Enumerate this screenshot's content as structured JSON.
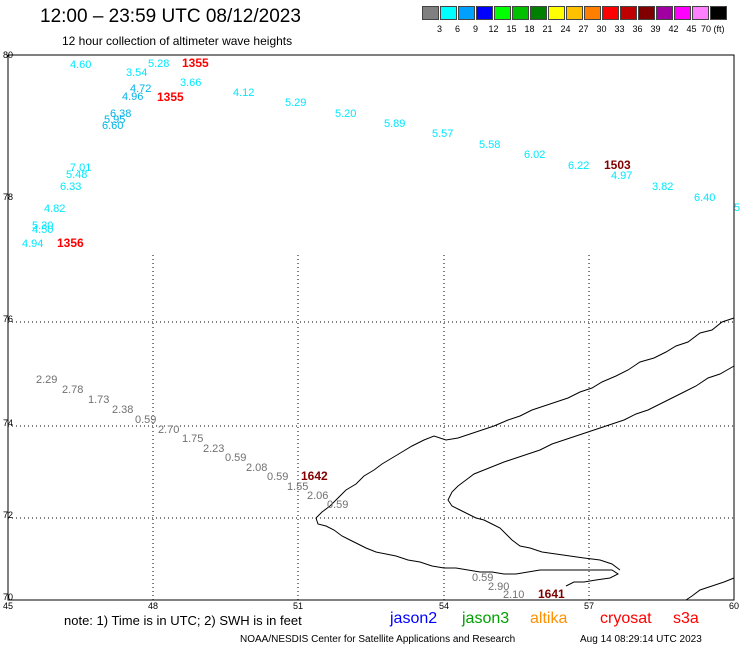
{
  "header": {
    "title": "12:00 – 23:59 UTC 08/12/2023",
    "subtitle": "12 hour collection of altimeter wave heights"
  },
  "colorbar": {
    "labels": [
      "3",
      "6",
      "9",
      "12",
      "15",
      "18",
      "21",
      "24",
      "27",
      "30",
      "33",
      "36",
      "39",
      "42",
      "45",
      "70 (ft)"
    ],
    "colors": [
      "#808080",
      "#00ffff",
      "#00a0ff",
      "#0000ff",
      "#00ff00",
      "#00c000",
      "#008000",
      "#ffff00",
      "#ffc000",
      "#ff8000",
      "#ff0000",
      "#c00000",
      "#800000",
      "#a000a0",
      "#ff00ff",
      "#ff80ff",
      "#000000"
    ]
  },
  "axes": {
    "lon_labels": [
      "45",
      "48",
      "51",
      "54",
      "57",
      "60"
    ],
    "lat_labels": [
      "80",
      "78",
      "76",
      "74",
      "72",
      "70"
    ]
  },
  "tracks": {
    "cryosat_s3a_a_values": [
      "4.60",
      "5.28",
      "3.54",
      "4.72",
      "4.96",
      "6.38",
      "5.95",
      "6.60",
      "7.01",
      "5.48",
      "6.33",
      "4.82",
      "5.30",
      "4.50",
      "4.94"
    ],
    "cryosat_s3a_b_values": [
      "3.66",
      "4.12",
      "5.29",
      "5.20",
      "5.89",
      "5.57",
      "5.58",
      "6.02",
      "6.22",
      "4.97",
      "3.82",
      "6.40",
      "5"
    ],
    "track_gray_a_values": [
      "2.29",
      "2.78",
      "1.73",
      "2.38",
      "0.59",
      "2.70",
      "1.75",
      "2.23",
      "0.59",
      "2.08",
      "0.59",
      "1.55",
      "2.06",
      "0.59"
    ],
    "track_gray_b_values": [
      "0.59",
      "2.90",
      "2.10"
    ],
    "times": [
      "1355",
      "1355",
      "1356",
      "1503",
      "1642",
      "1641"
    ]
  },
  "colors": {
    "cyan_track": "#00e8ff",
    "blue_track": "#00b4e8",
    "gray_track": "#707070",
    "time_red": "#ff0000",
    "time_dark": "#800000",
    "jason2": "#0000ff",
    "jason3": "#00a000",
    "altika": "#ff9000",
    "cryosat": "#ff0000"
  },
  "footer": {
    "note": "note:  1) Time is in UTC;  2) SWH is in feet",
    "satellites": [
      "jason2",
      "jason3",
      "altika",
      "cryosat",
      "s3a"
    ],
    "credit": "NOAA/NESDIS Center for Satellite Applications and Research",
    "timestamp": "Aug 14 08:29:14 UTC 2023"
  }
}
